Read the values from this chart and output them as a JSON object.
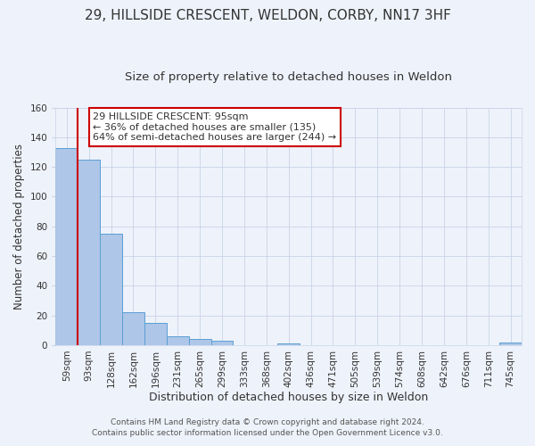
{
  "title": "29, HILLSIDE CRESCENT, WELDON, CORBY, NN17 3HF",
  "subtitle": "Size of property relative to detached houses in Weldon",
  "xlabel": "Distribution of detached houses by size in Weldon",
  "ylabel": "Number of detached properties",
  "bar_labels": [
    "59sqm",
    "93sqm",
    "128sqm",
    "162sqm",
    "196sqm",
    "231sqm",
    "265sqm",
    "299sqm",
    "333sqm",
    "368sqm",
    "402sqm",
    "436sqm",
    "471sqm",
    "505sqm",
    "539sqm",
    "574sqm",
    "608sqm",
    "642sqm",
    "676sqm",
    "711sqm",
    "745sqm"
  ],
  "bar_values": [
    133,
    125,
    75,
    22,
    15,
    6,
    4,
    3,
    0,
    0,
    1,
    0,
    0,
    0,
    0,
    0,
    0,
    0,
    0,
    0,
    2
  ],
  "bar_color": "#aec6e8",
  "bar_edge_color": "#5a9fd4",
  "bg_color": "#eef2fa",
  "grid_color": "#c8d4e8",
  "property_line_x": 1,
  "property_line_color": "#cc0000",
  "annotation_text": "29 HILLSIDE CRESCENT: 95sqm\n← 36% of detached houses are smaller (135)\n64% of semi-detached houses are larger (244) →",
  "annotation_box_color": "#ffffff",
  "annotation_box_edge": "#cc0000",
  "footer_line1": "Contains HM Land Registry data © Crown copyright and database right 2024.",
  "footer_line2": "Contains public sector information licensed under the Open Government Licence v3.0.",
  "ylim": [
    0,
    160
  ],
  "title_fontsize": 11,
  "subtitle_fontsize": 9.5,
  "xlabel_fontsize": 9,
  "ylabel_fontsize": 8.5,
  "tick_fontsize": 7.5,
  "annotation_fontsize": 8,
  "footer_fontsize": 6.5
}
